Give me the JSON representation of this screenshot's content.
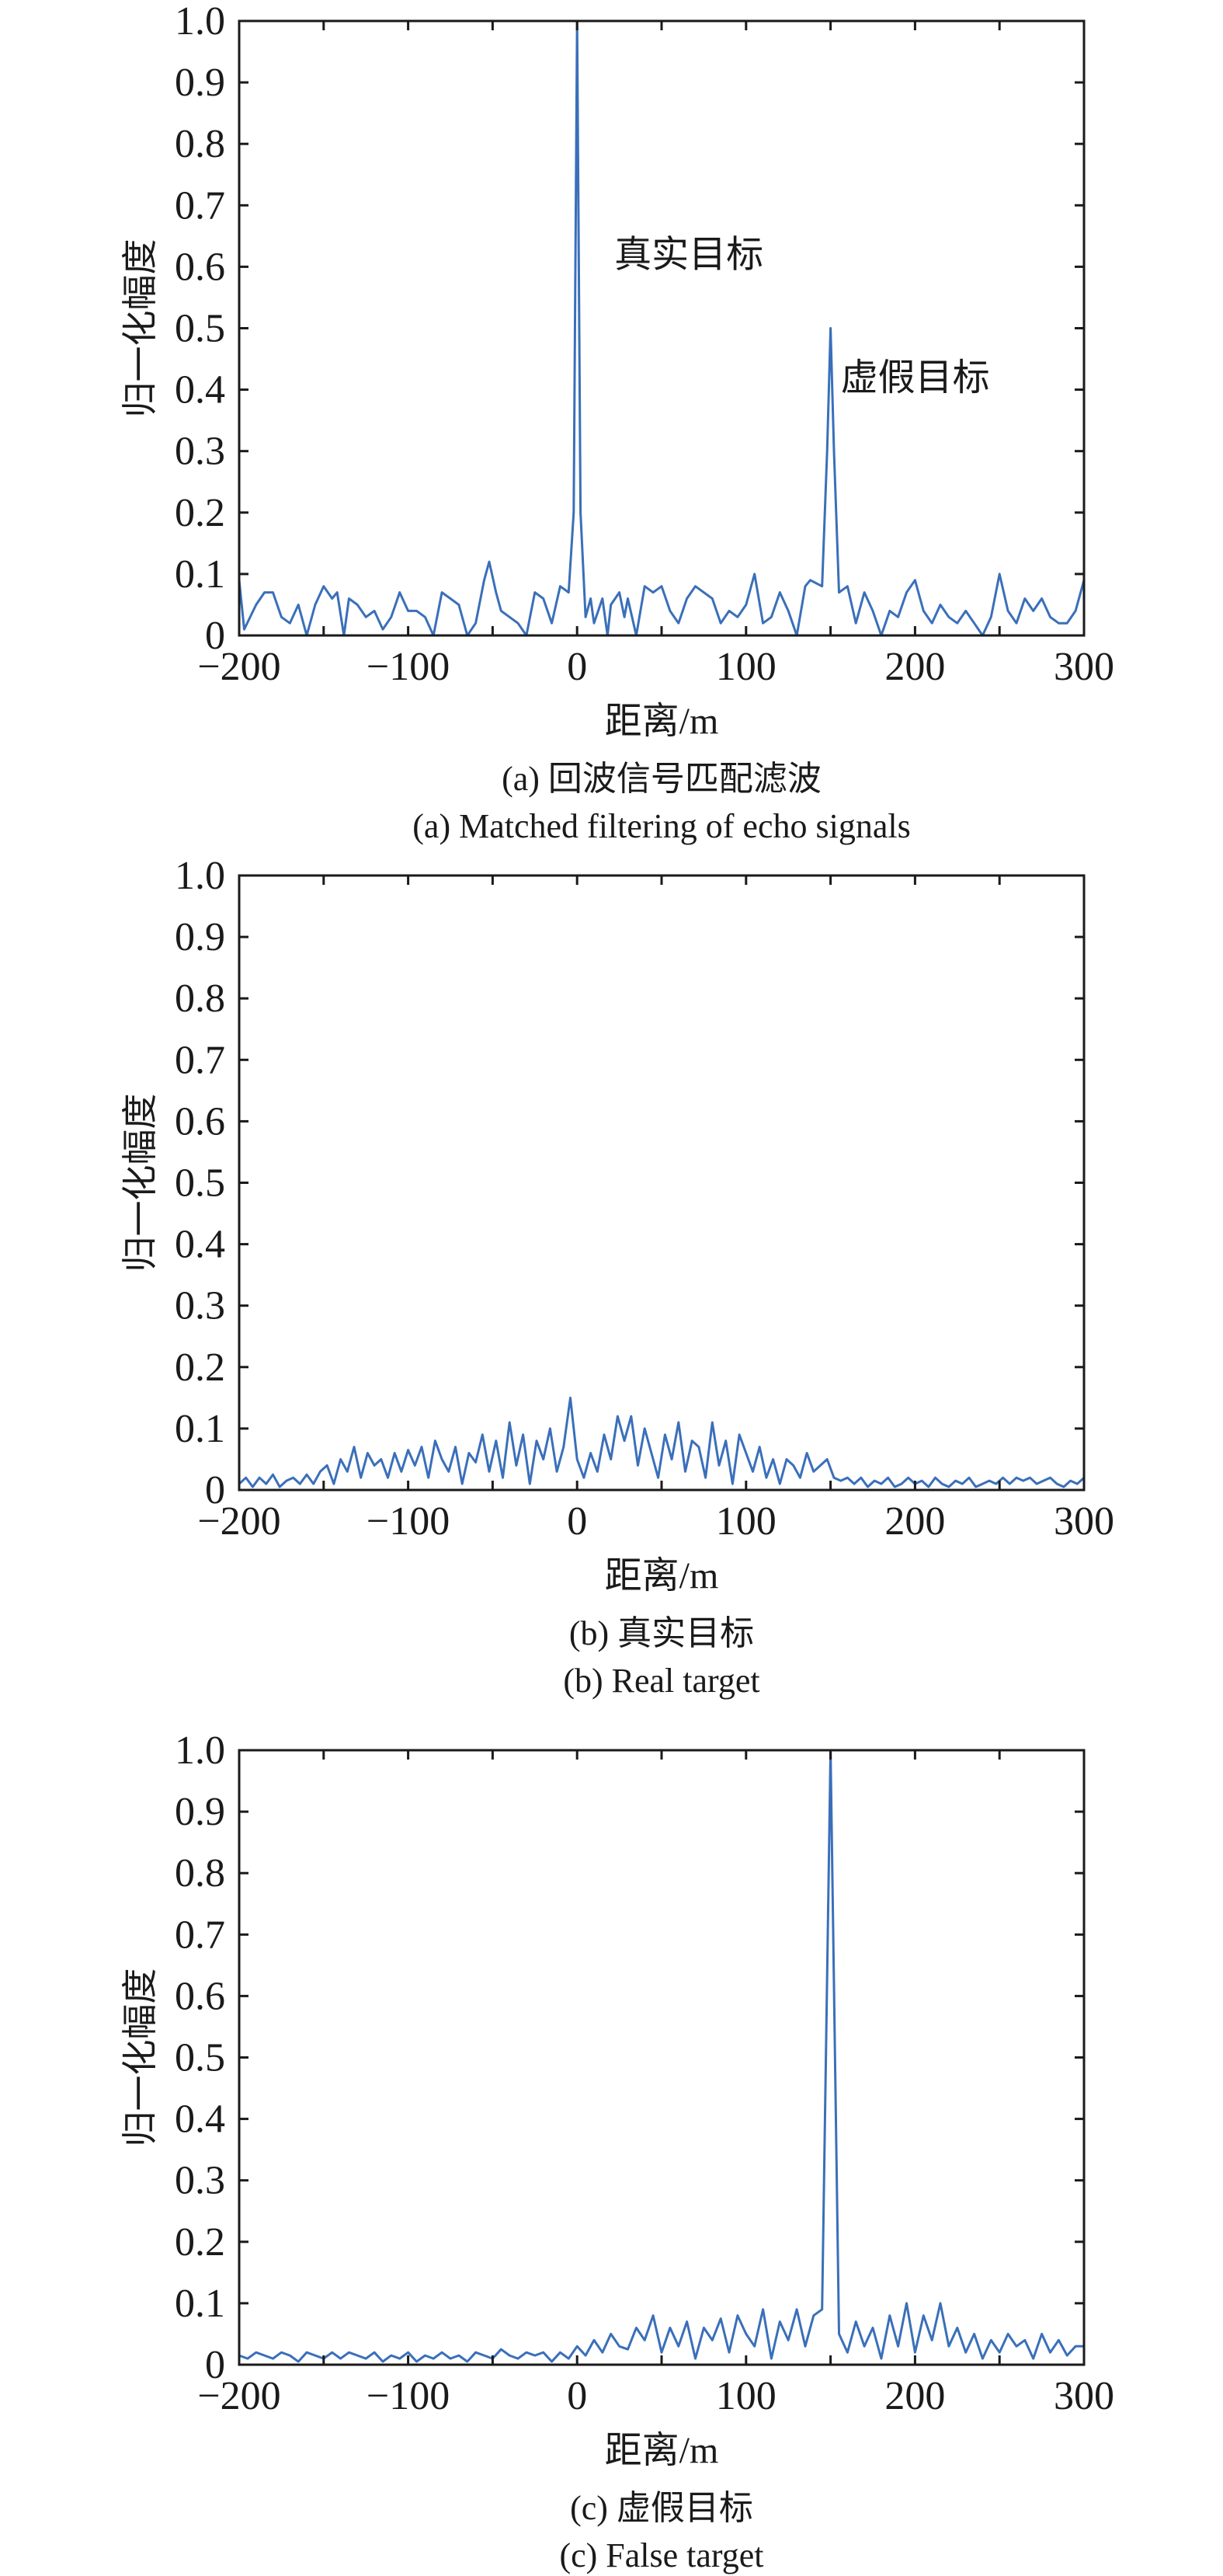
{
  "line_color": "#3a6fba",
  "chart_data": [
    {
      "type": "line",
      "id": "a",
      "xlabel": "距离/m",
      "ylabel": "归一化幅度",
      "caption_cn": "(a) 回波信号匹配滤波",
      "caption_en": "(a) Matched filtering of echo signals",
      "xlim": [
        -200,
        300
      ],
      "ylim": [
        0,
        1.0
      ],
      "xticks": [
        -200,
        -100,
        0,
        100,
        200,
        300
      ],
      "xtick_labels": [
        "−200",
        "−100",
        "0",
        "100",
        "200",
        "300"
      ],
      "yticks": [
        0,
        0.1,
        0.2,
        0.3,
        0.4,
        0.5,
        0.6,
        0.7,
        0.8,
        0.9,
        1.0
      ],
      "ytick_labels": [
        "0",
        "0.1",
        "0.2",
        "0.3",
        "0.4",
        "0.5",
        "0.6",
        "0.7",
        "0.8",
        "0.9",
        "1.0"
      ],
      "annotations": [
        {
          "text": "真实目标",
          "x": 22,
          "y": 0.62
        },
        {
          "text": "虚假目标",
          "x": 156,
          "y": 0.42
        }
      ],
      "points": [
        [
          -200,
          0.09
        ],
        [
          -197,
          0.01
        ],
        [
          -190,
          0.05
        ],
        [
          -185,
          0.07
        ],
        [
          -180,
          0.07
        ],
        [
          -175,
          0.03
        ],
        [
          -170,
          0.02
        ],
        [
          -165,
          0.05
        ],
        [
          -160,
          0.0
        ],
        [
          -155,
          0.05
        ],
        [
          -150,
          0.08
        ],
        [
          -145,
          0.06
        ],
        [
          -142,
          0.07
        ],
        [
          -138,
          0.0
        ],
        [
          -135,
          0.06
        ],
        [
          -130,
          0.05
        ],
        [
          -125,
          0.03
        ],
        [
          -120,
          0.04
        ],
        [
          -115,
          0.01
        ],
        [
          -110,
          0.03
        ],
        [
          -105,
          0.07
        ],
        [
          -100,
          0.04
        ],
        [
          -95,
          0.04
        ],
        [
          -90,
          0.03
        ],
        [
          -85,
          0.0
        ],
        [
          -80,
          0.07
        ],
        [
          -75,
          0.06
        ],
        [
          -70,
          0.05
        ],
        [
          -65,
          0.0
        ],
        [
          -60,
          0.02
        ],
        [
          -55,
          0.09
        ],
        [
          -52,
          0.12
        ],
        [
          -48,
          0.07
        ],
        [
          -45,
          0.04
        ],
        [
          -40,
          0.03
        ],
        [
          -35,
          0.02
        ],
        [
          -30,
          0.0
        ],
        [
          -25,
          0.07
        ],
        [
          -20,
          0.06
        ],
        [
          -15,
          0.02
        ],
        [
          -10,
          0.08
        ],
        [
          -5,
          0.07
        ],
        [
          -2,
          0.2
        ],
        [
          -1,
          0.6
        ],
        [
          0,
          1.0
        ],
        [
          1,
          0.6
        ],
        [
          2,
          0.2
        ],
        [
          5,
          0.03
        ],
        [
          8,
          0.06
        ],
        [
          10,
          0.02
        ],
        [
          15,
          0.06
        ],
        [
          18,
          0.0
        ],
        [
          20,
          0.05
        ],
        [
          25,
          0.07
        ],
        [
          28,
          0.03
        ],
        [
          30,
          0.06
        ],
        [
          35,
          0.0
        ],
        [
          40,
          0.08
        ],
        [
          45,
          0.07
        ],
        [
          50,
          0.08
        ],
        [
          55,
          0.04
        ],
        [
          60,
          0.02
        ],
        [
          65,
          0.06
        ],
        [
          70,
          0.08
        ],
        [
          75,
          0.07
        ],
        [
          80,
          0.06
        ],
        [
          85,
          0.02
        ],
        [
          90,
          0.04
        ],
        [
          95,
          0.03
        ],
        [
          100,
          0.05
        ],
        [
          105,
          0.1
        ],
        [
          110,
          0.02
        ],
        [
          115,
          0.03
        ],
        [
          120,
          0.07
        ],
        [
          125,
          0.04
        ],
        [
          130,
          0.0
        ],
        [
          135,
          0.08
        ],
        [
          138,
          0.09
        ],
        [
          145,
          0.08
        ],
        [
          148,
          0.3
        ],
        [
          150,
          0.5
        ],
        [
          152,
          0.3
        ],
        [
          155,
          0.07
        ],
        [
          160,
          0.08
        ],
        [
          165,
          0.02
        ],
        [
          170,
          0.07
        ],
        [
          175,
          0.04
        ],
        [
          180,
          0.0
        ],
        [
          185,
          0.04
        ],
        [
          190,
          0.03
        ],
        [
          195,
          0.07
        ],
        [
          200,
          0.09
        ],
        [
          205,
          0.04
        ],
        [
          210,
          0.02
        ],
        [
          215,
          0.05
        ],
        [
          220,
          0.03
        ],
        [
          225,
          0.02
        ],
        [
          230,
          0.04
        ],
        [
          235,
          0.02
        ],
        [
          240,
          0.0
        ],
        [
          245,
          0.03
        ],
        [
          250,
          0.1
        ],
        [
          255,
          0.04
        ],
        [
          260,
          0.02
        ],
        [
          265,
          0.06
        ],
        [
          270,
          0.04
        ],
        [
          275,
          0.06
        ],
        [
          280,
          0.03
        ],
        [
          285,
          0.02
        ],
        [
          290,
          0.02
        ],
        [
          295,
          0.04
        ],
        [
          300,
          0.09
        ]
      ]
    },
    {
      "type": "line",
      "id": "b",
      "xlabel": "距离/m",
      "ylabel": "归一化幅度",
      "caption_cn": "(b) 真实目标",
      "caption_en": "(b) Real target",
      "xlim": [
        -200,
        300
      ],
      "ylim": [
        0,
        1.0
      ],
      "xticks": [
        -200,
        -100,
        0,
        100,
        200,
        300
      ],
      "xtick_labels": [
        "−200",
        "−100",
        "0",
        "100",
        "200",
        "300"
      ],
      "yticks": [
        0,
        0.1,
        0.2,
        0.3,
        0.4,
        0.5,
        0.6,
        0.7,
        0.8,
        0.9,
        1.0
      ],
      "ytick_labels": [
        "0",
        "0.1",
        "0.2",
        "0.3",
        "0.4",
        "0.5",
        "0.6",
        "0.7",
        "0.8",
        "0.9",
        "1.0"
      ],
      "annotations": [],
      "x_start": -200,
      "x_step": 4,
      "y": [
        0.01,
        0.02,
        0.005,
        0.02,
        0.01,
        0.025,
        0.005,
        0.015,
        0.02,
        0.01,
        0.025,
        0.01,
        0.03,
        0.04,
        0.01,
        0.05,
        0.03,
        0.07,
        0.02,
        0.06,
        0.04,
        0.05,
        0.02,
        0.06,
        0.03,
        0.065,
        0.04,
        0.07,
        0.02,
        0.08,
        0.05,
        0.03,
        0.07,
        0.01,
        0.06,
        0.045,
        0.09,
        0.03,
        0.08,
        0.02,
        0.11,
        0.04,
        0.09,
        0.01,
        0.08,
        0.05,
        0.1,
        0.03,
        0.07,
        0.15,
        0.05,
        0.02,
        0.06,
        0.03,
        0.09,
        0.05,
        0.12,
        0.08,
        0.12,
        0.04,
        0.1,
        0.06,
        0.02,
        0.09,
        0.05,
        0.11,
        0.03,
        0.08,
        0.07,
        0.02,
        0.11,
        0.04,
        0.08,
        0.01,
        0.09,
        0.06,
        0.03,
        0.07,
        0.02,
        0.05,
        0.01,
        0.05,
        0.04,
        0.02,
        0.06,
        0.03,
        0.04,
        0.05,
        0.02,
        0.015,
        0.02,
        0.01,
        0.02,
        0.005,
        0.015,
        0.01,
        0.02,
        0.005,
        0.01,
        0.02,
        0.01,
        0.015,
        0.005,
        0.02,
        0.01,
        0.005,
        0.015,
        0.01,
        0.02,
        0.005,
        0.01,
        0.015,
        0.01,
        0.02,
        0.01,
        0.02,
        0.015,
        0.02,
        0.01,
        0.015,
        0.02,
        0.01,
        0.005,
        0.015,
        0.01,
        0.02
      ]
    },
    {
      "type": "line",
      "id": "c",
      "xlabel": "距离/m",
      "ylabel": "归一化幅度",
      "caption_cn": "(c) 虚假目标",
      "caption_en": "(c) False target",
      "xlim": [
        -200,
        300
      ],
      "ylim": [
        0,
        1.0
      ],
      "xticks": [
        -200,
        -100,
        0,
        100,
        200,
        300
      ],
      "xtick_labels": [
        "−200",
        "−100",
        "0",
        "100",
        "200",
        "300"
      ],
      "yticks": [
        0,
        0.1,
        0.2,
        0.3,
        0.4,
        0.5,
        0.6,
        0.7,
        0.8,
        0.9,
        1.0
      ],
      "ytick_labels": [
        "0",
        "0.1",
        "0.2",
        "0.3",
        "0.4",
        "0.5",
        "0.6",
        "0.7",
        "0.8",
        "0.9",
        "1.0"
      ],
      "annotations": [],
      "x_start": -200,
      "x_step": 5,
      "y": [
        0.015,
        0.01,
        0.02,
        0.015,
        0.01,
        0.02,
        0.015,
        0.005,
        0.02,
        0.015,
        0.01,
        0.02,
        0.01,
        0.02,
        0.015,
        0.01,
        0.02,
        0.005,
        0.015,
        0.01,
        0.02,
        0.005,
        0.015,
        0.01,
        0.02,
        0.01,
        0.015,
        0.005,
        0.02,
        0.015,
        0.01,
        0.025,
        0.015,
        0.01,
        0.02,
        0.015,
        0.02,
        0.005,
        0.02,
        0.01,
        0.03,
        0.015,
        0.04,
        0.02,
        0.05,
        0.03,
        0.025,
        0.06,
        0.04,
        0.08,
        0.02,
        0.06,
        0.03,
        0.07,
        0.01,
        0.06,
        0.04,
        0.075,
        0.02,
        0.08,
        0.05,
        0.03,
        0.09,
        0.01,
        0.07,
        0.04,
        0.09,
        0.03,
        0.08,
        0.09,
        1.0,
        0.05,
        0.02,
        0.07,
        0.03,
        0.06,
        0.01,
        0.08,
        0.03,
        0.1,
        0.02,
        0.08,
        0.04,
        0.1,
        0.03,
        0.06,
        0.02,
        0.05,
        0.01,
        0.04,
        0.02,
        0.05,
        0.03,
        0.04,
        0.01,
        0.05,
        0.02,
        0.04,
        0.015,
        0.03,
        0.03
      ]
    }
  ]
}
